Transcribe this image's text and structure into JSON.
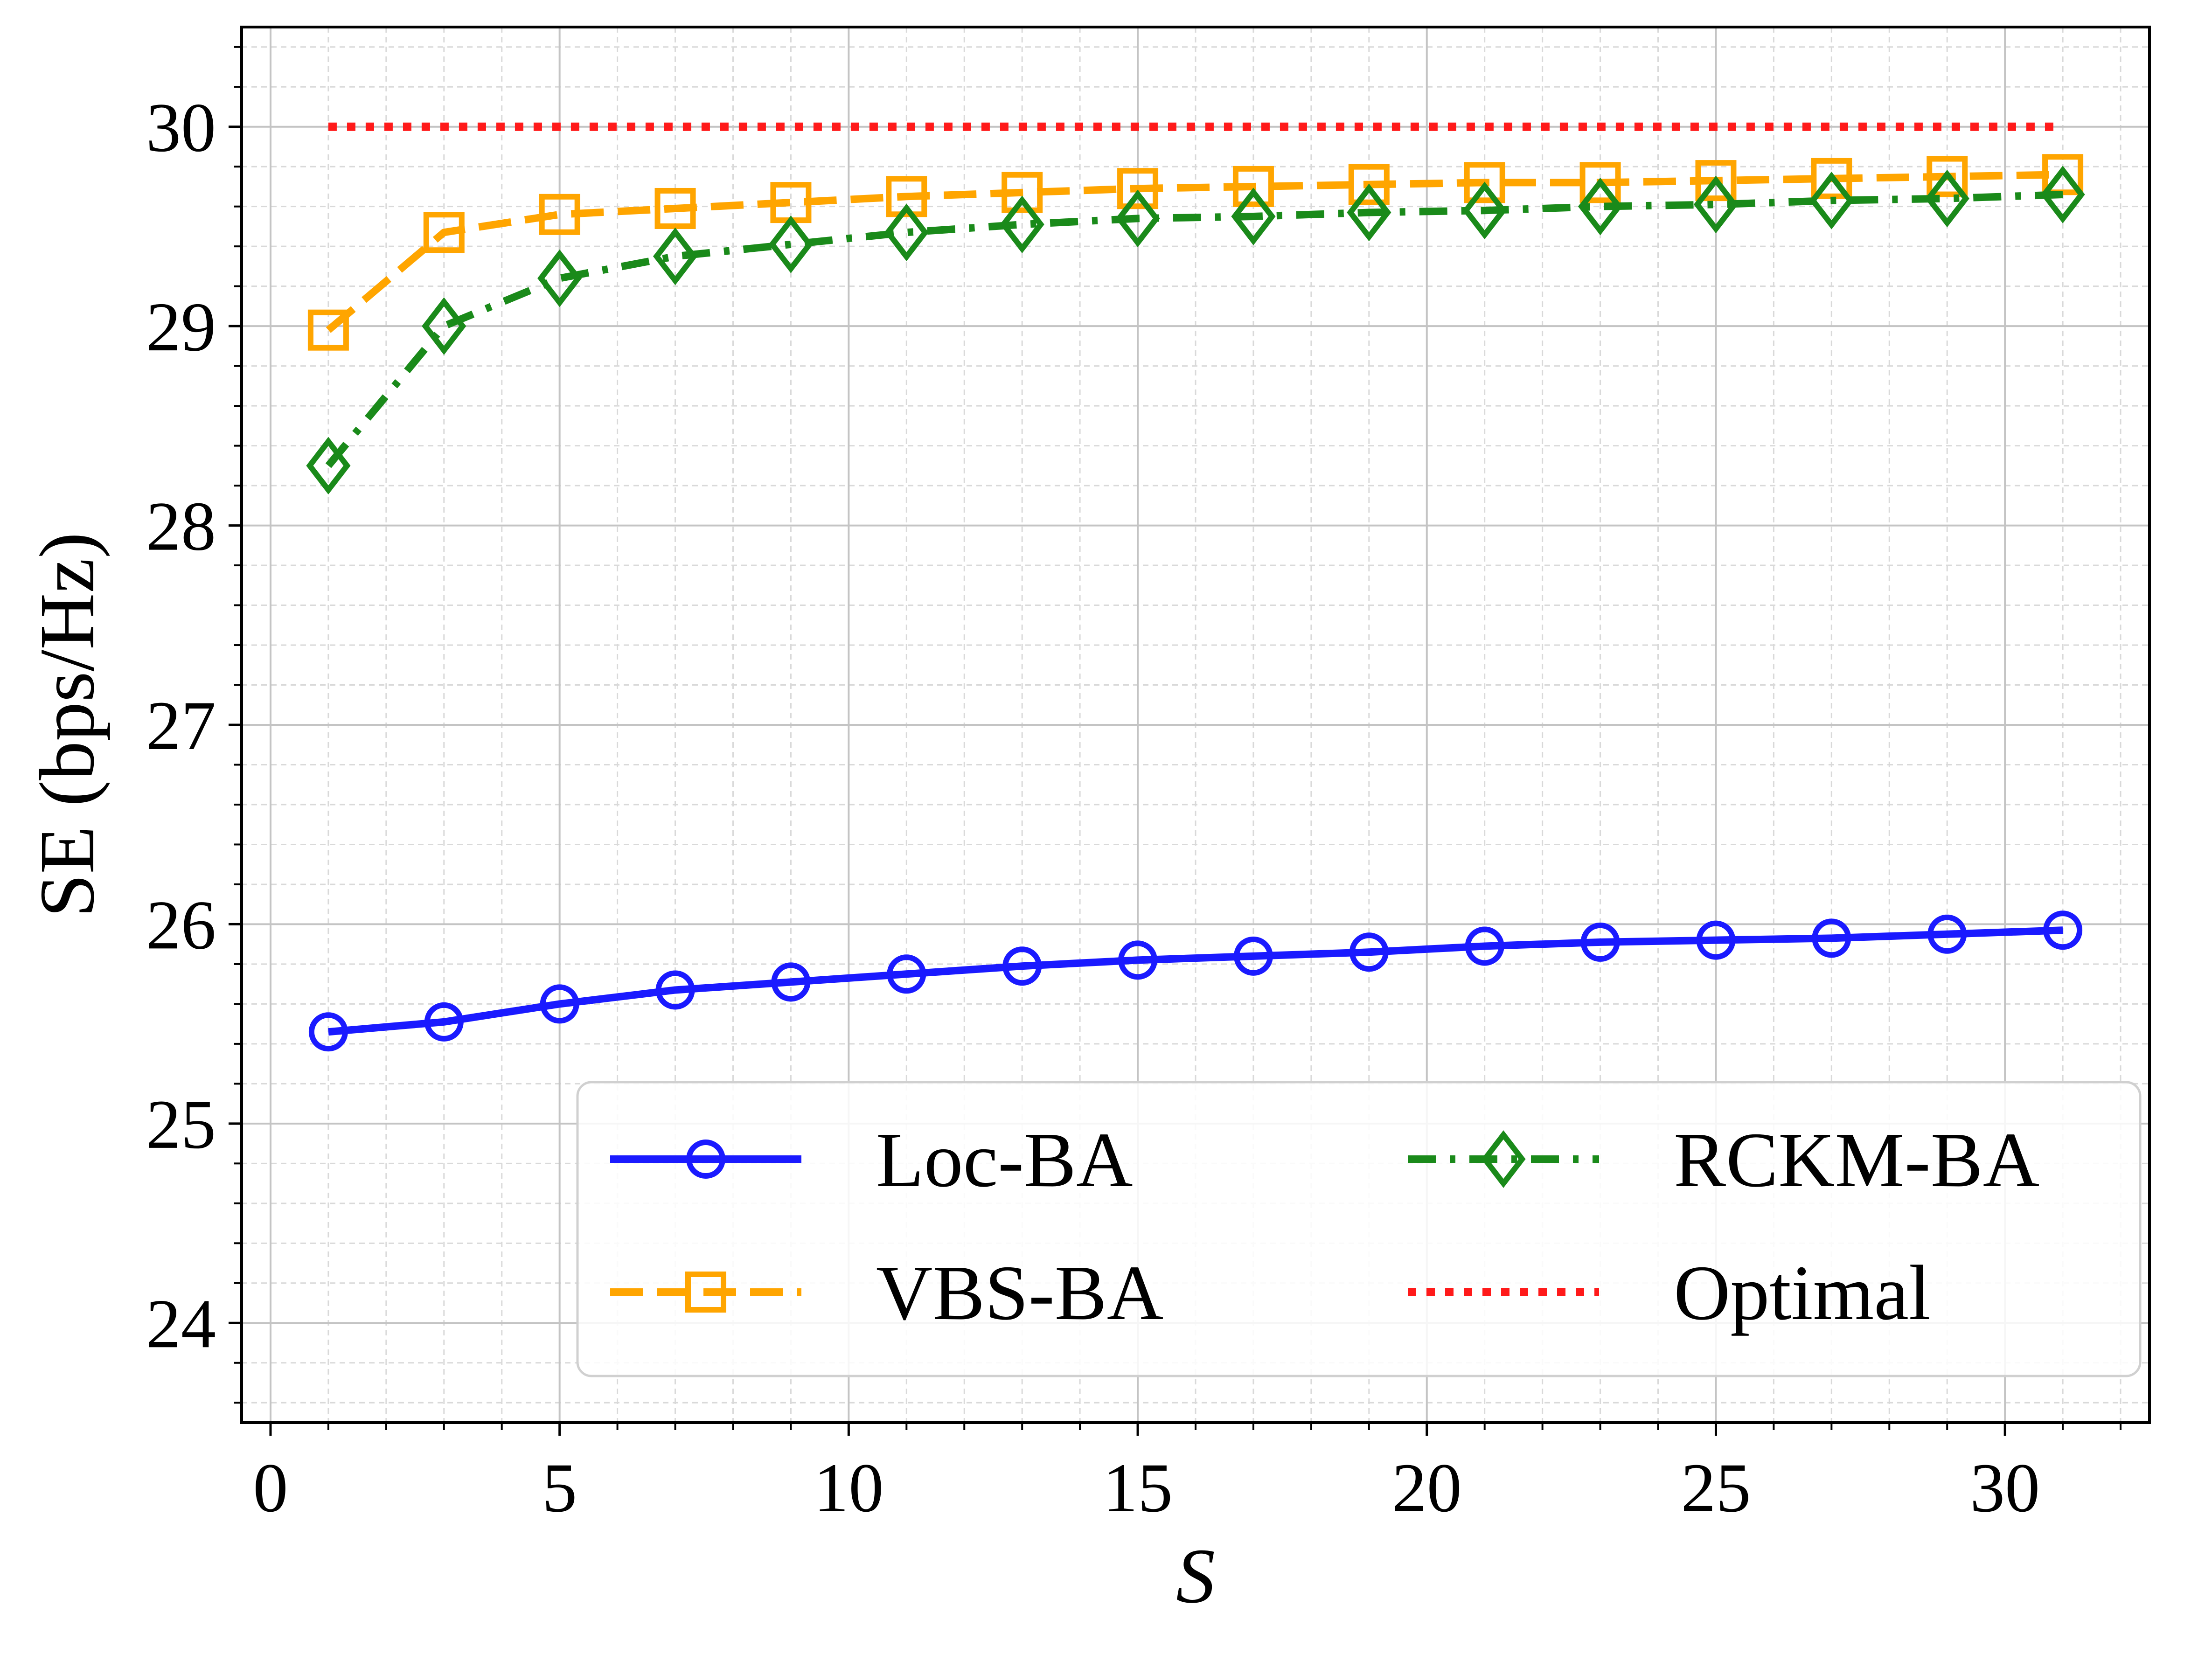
{
  "chart_data": {
    "type": "line",
    "title": "",
    "xlabel": "S",
    "ylabel": "SE (bps/Hz)",
    "xlim": [
      -0.5,
      32.5
    ],
    "ylim": [
      23.5,
      30.5
    ],
    "xticks": [
      0,
      5,
      10,
      15,
      20,
      25,
      30
    ],
    "yticks": [
      24,
      25,
      26,
      27,
      28,
      29,
      30
    ],
    "xtick_labels": [
      "0",
      "5",
      "10",
      "15",
      "20",
      "25",
      "30"
    ],
    "ytick_labels": [
      "24",
      "25",
      "26",
      "27",
      "28",
      "29",
      "30"
    ],
    "grid": true,
    "minor_grid": true,
    "legend_position": "lower-right",
    "legend_columns": 2,
    "x": [
      1,
      3,
      5,
      7,
      9,
      11,
      13,
      15,
      17,
      19,
      21,
      23,
      25,
      27,
      29,
      31
    ],
    "series": [
      {
        "name": "Loc-BA",
        "color": "#1a1aff",
        "line_style": "solid",
        "marker": "circle",
        "values": [
          25.46,
          25.51,
          25.6,
          25.67,
          25.71,
          25.75,
          25.79,
          25.82,
          25.84,
          25.86,
          25.89,
          25.91,
          25.92,
          25.93,
          25.95,
          25.97
        ]
      },
      {
        "name": "VBS-BA",
        "color": "#ffa500",
        "line_style": "dashed",
        "marker": "square",
        "values": [
          28.98,
          29.47,
          29.56,
          29.59,
          29.62,
          29.65,
          29.67,
          29.69,
          29.7,
          29.71,
          29.72,
          29.72,
          29.73,
          29.74,
          29.75,
          29.76
        ]
      },
      {
        "name": "RCKM-BA",
        "color": "#1a8a1a",
        "line_style": "dashdot",
        "marker": "diamond",
        "values": [
          28.3,
          29.0,
          29.24,
          29.35,
          29.41,
          29.47,
          29.51,
          29.54,
          29.55,
          29.57,
          29.58,
          29.6,
          29.61,
          29.63,
          29.64,
          29.66
        ]
      },
      {
        "name": "Optimal",
        "color": "#ff1a1a",
        "line_style": "dotted",
        "marker": "none",
        "values": [
          30,
          30,
          30,
          30,
          30,
          30,
          30,
          30,
          30,
          30,
          30,
          30,
          30,
          30,
          30,
          30
        ]
      }
    ]
  }
}
